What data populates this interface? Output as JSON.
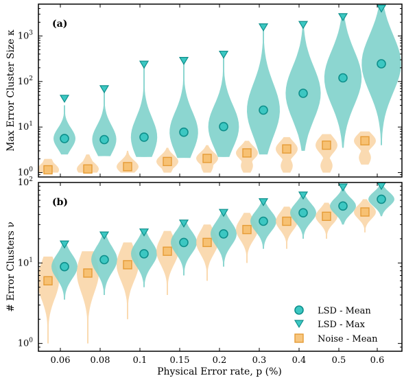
{
  "chart_data": [
    {
      "panel_label": "(a)",
      "type": "violin",
      "ylabel": "Max Error Cluster Size κ",
      "yscale": "log",
      "ylim": [
        0.8,
        5000
      ],
      "yticks": [
        "10^0",
        "10^1",
        "10^2",
        "10^3"
      ],
      "x": [
        "0.06",
        "0.08",
        "0.1",
        "0.15",
        "0.2",
        "0.3",
        "0.4",
        "0.5",
        "0.6"
      ],
      "series": [
        {
          "name": "LSD - Mean",
          "marker": "circle",
          "color": "#40c4c0",
          "values": [
            5.6,
            5.3,
            6.0,
            7.7,
            10.2,
            23.5,
            55,
            120,
            245
          ]
        },
        {
          "name": "LSD - Max",
          "marker": "triangle-down",
          "color": "#1ec8c2",
          "values": [
            42,
            68,
            235,
            285,
            390,
            1550,
            1750,
            2600,
            4000
          ]
        },
        {
          "name": "Noise - Mean",
          "marker": "square",
          "color": "#f7be6c",
          "values": [
            1.15,
            1.2,
            1.35,
            1.75,
            2.05,
            2.7,
            3.3,
            4.0,
            5.0
          ]
        }
      ],
      "violin_ranges": {
        "lsd": [
          [
            2.5,
            30
          ],
          [
            2.3,
            70
          ],
          [
            2.2,
            240
          ],
          [
            2.1,
            300
          ],
          [
            2.2,
            400
          ],
          [
            2.5,
            1600
          ],
          [
            3,
            1800
          ],
          [
            3.5,
            2700
          ],
          [
            4,
            4000
          ]
        ],
        "noise": [
          [
            1,
            2
          ],
          [
            1,
            2.5
          ],
          [
            1,
            3
          ],
          [
            1,
            3.5
          ],
          [
            1,
            4
          ],
          [
            1,
            5
          ],
          [
            1,
            6
          ],
          [
            1,
            7
          ],
          [
            1.5,
            8
          ]
        ]
      }
    },
    {
      "panel_label": "(b)",
      "type": "violin",
      "ylabel": "# Error Clusters ν",
      "yscale": "log",
      "ylim": [
        0.8,
        100
      ],
      "yticks": [
        "10^0",
        "10^1",
        "10^2"
      ],
      "x": [
        "0.06",
        "0.08",
        "0.1",
        "0.15",
        "0.2",
        "0.3",
        "0.4",
        "0.5",
        "0.6"
      ],
      "series": [
        {
          "name": "LSD - Mean",
          "marker": "circle",
          "color": "#40c4c0",
          "values": [
            9,
            11,
            13,
            18,
            23,
            33,
            42,
            51,
            62
          ]
        },
        {
          "name": "LSD - Max",
          "marker": "triangle-down",
          "color": "#1ec8c2",
          "values": [
            17,
            22,
            24,
            31,
            42,
            57,
            69,
            87,
            98
          ]
        },
        {
          "name": "Noise - Mean",
          "marker": "square",
          "color": "#f7be6c",
          "values": [
            6,
            7.5,
            9.5,
            14,
            18,
            26,
            33,
            38,
            43
          ]
        }
      ],
      "violin_ranges": {
        "lsd": [
          [
            3.5,
            18
          ],
          [
            4,
            23
          ],
          [
            5,
            26
          ],
          [
            7,
            33
          ],
          [
            9,
            44
          ],
          [
            15,
            60
          ],
          [
            20,
            72
          ],
          [
            30,
            90
          ],
          [
            38,
            100
          ]
        ],
        "noise": [
          [
            1,
            12
          ],
          [
            1,
            14
          ],
          [
            2,
            18
          ],
          [
            4,
            25
          ],
          [
            6,
            30
          ],
          [
            10,
            42
          ],
          [
            15,
            50
          ],
          [
            20,
            56
          ],
          [
            24,
            62
          ]
        ]
      }
    }
  ],
  "xlabel": "Physical Error rate, p (%)",
  "colors": {
    "lsd_fill": "#7fd1cb",
    "noise_fill": "#f9d4a3",
    "lsd_marker": "#3cc7c2",
    "noise_marker": "#f6bc68",
    "marker_edge_lsd": "#0e8f8b",
    "marker_edge_noise": "#e59b35"
  }
}
